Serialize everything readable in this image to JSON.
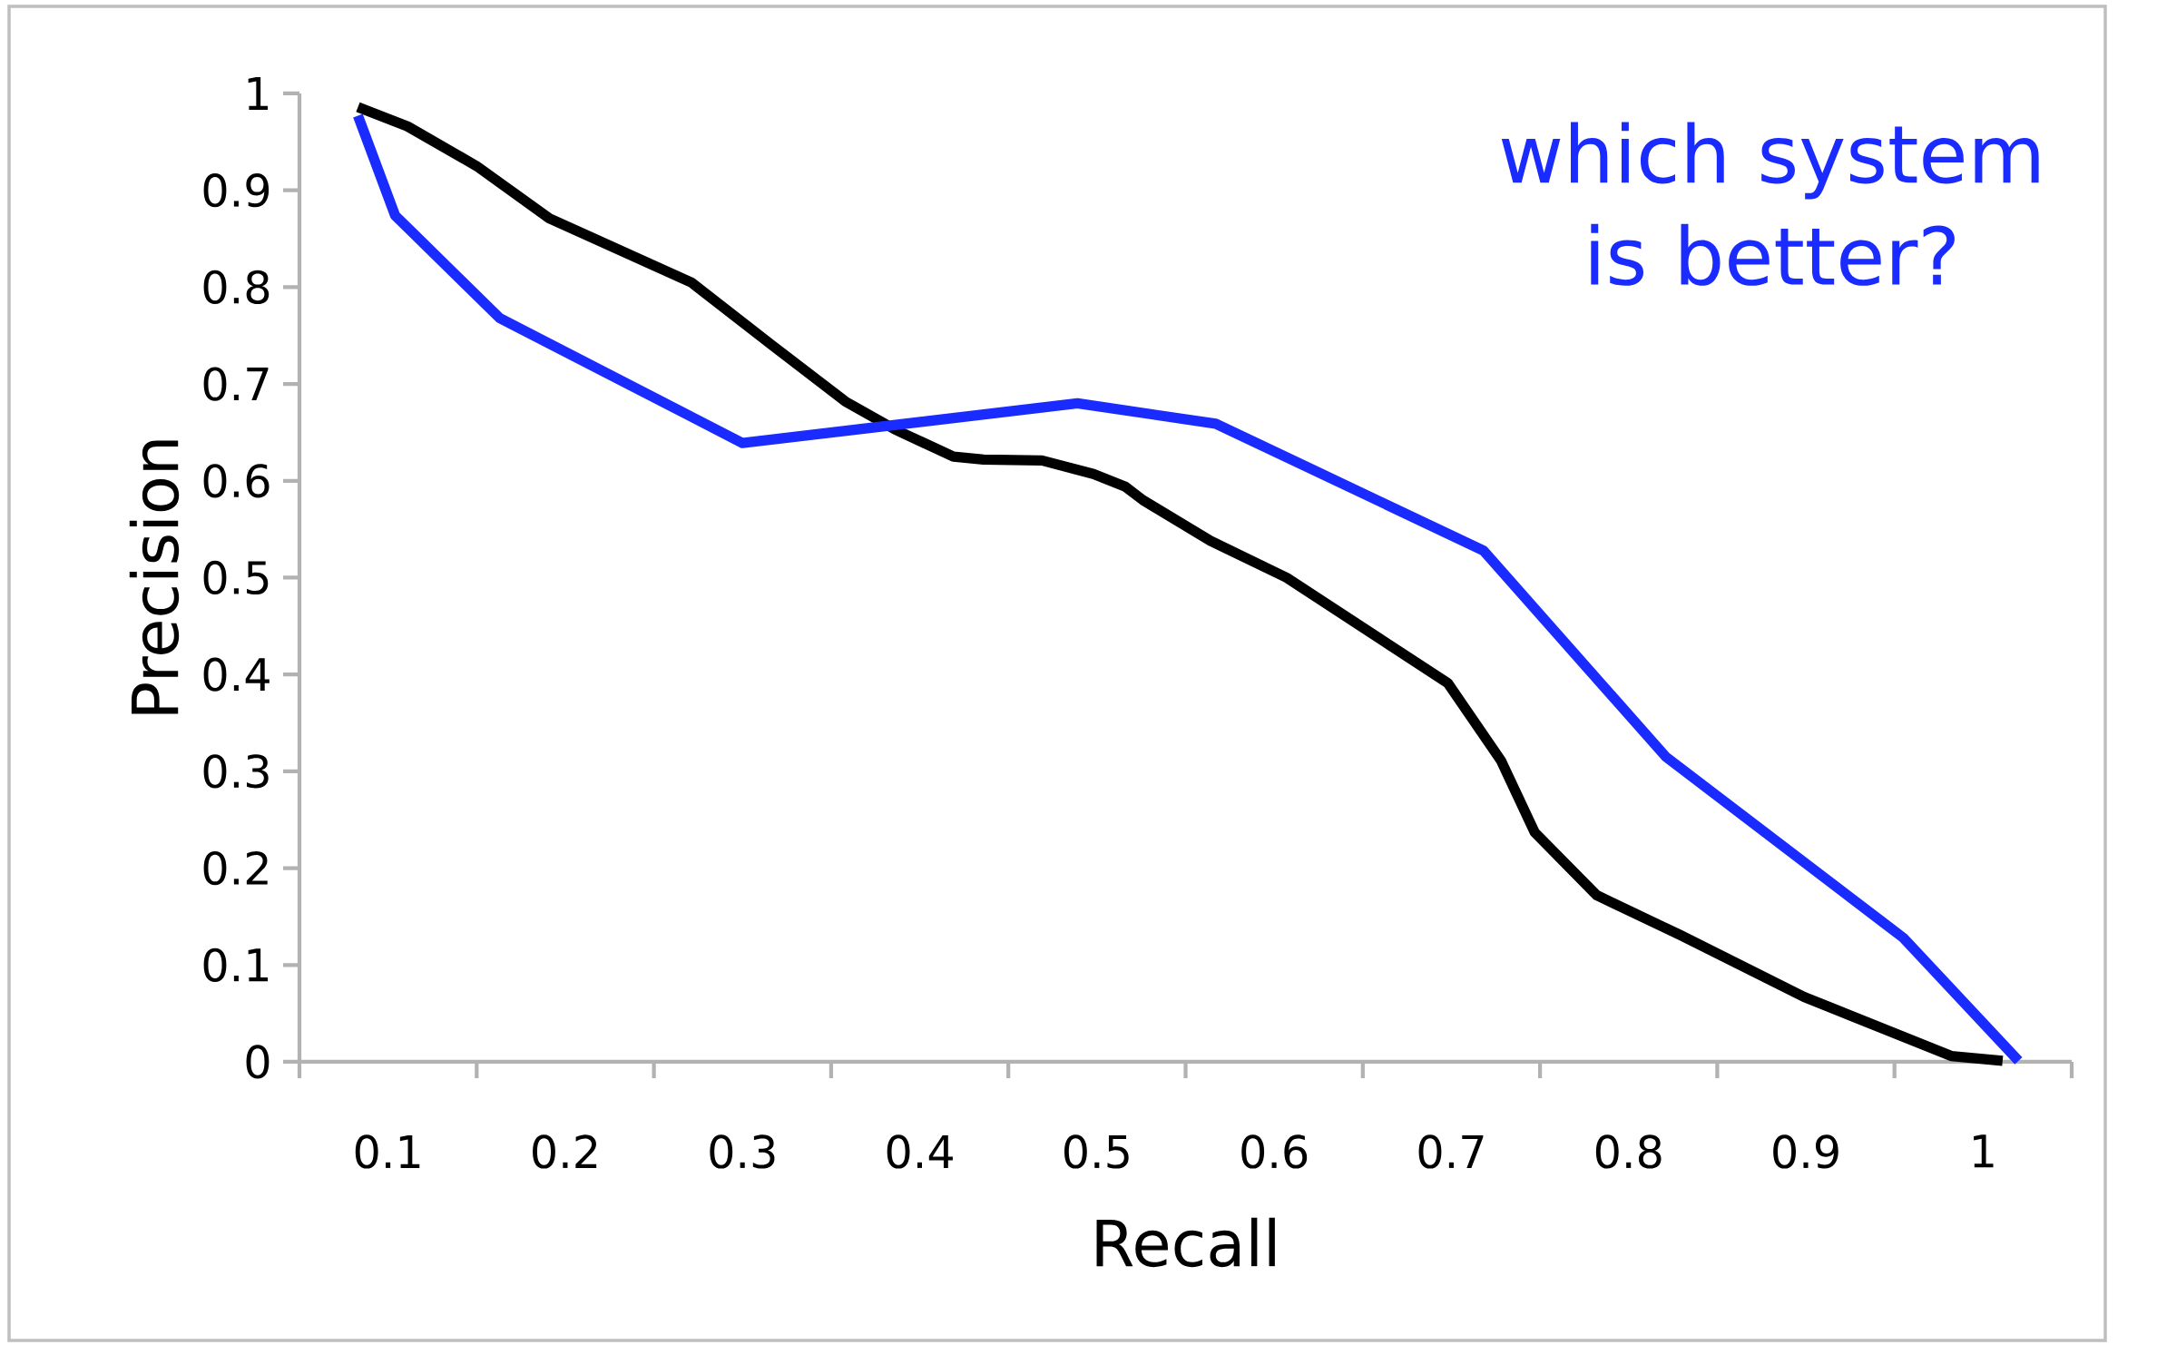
{
  "chart_data": {
    "type": "line",
    "xlabel": "Recall",
    "ylabel": "Precision",
    "annotations": [
      "which system is better?"
    ],
    "xlim": [
      0.05,
      1.05
    ],
    "ylim": [
      0,
      1
    ],
    "xticks": [
      0.1,
      0.2,
      0.3,
      0.4,
      0.5,
      0.6,
      0.7,
      0.8,
      0.9,
      1
    ],
    "yticks": [
      0,
      0.1,
      0.2,
      0.3,
      0.4,
      0.5,
      0.6,
      0.7,
      0.8,
      0.9,
      1
    ],
    "grid": false,
    "marker": "none",
    "line_style": "solid",
    "series": [
      {
        "color": "#000000",
        "x": [
          0.083,
          0.111,
          0.15,
          0.191,
          0.271,
          0.316,
          0.358,
          0.386,
          0.419,
          0.436,
          0.469,
          0.498,
          0.516,
          0.526,
          0.564,
          0.607,
          0.698,
          0.728,
          0.747,
          0.782,
          0.829,
          0.899,
          0.982,
          1.011
        ],
        "values": [
          0.986,
          0.966,
          0.925,
          0.871,
          0.805,
          0.741,
          0.682,
          0.653,
          0.625,
          0.622,
          0.621,
          0.607,
          0.594,
          0.58,
          0.538,
          0.5,
          0.391,
          0.311,
          0.237,
          0.172,
          0.131,
          0.067,
          0.006,
          0.001
        ]
      },
      {
        "color": "#1a2bff",
        "x": [
          0.083,
          0.104,
          0.163,
          0.3,
          0.489,
          0.567,
          0.718,
          0.821,
          0.955,
          1.02
        ],
        "values": [
          0.977,
          0.874,
          0.768,
          0.639,
          0.68,
          0.659,
          0.528,
          0.315,
          0.128,
          0.001
        ]
      }
    ]
  }
}
